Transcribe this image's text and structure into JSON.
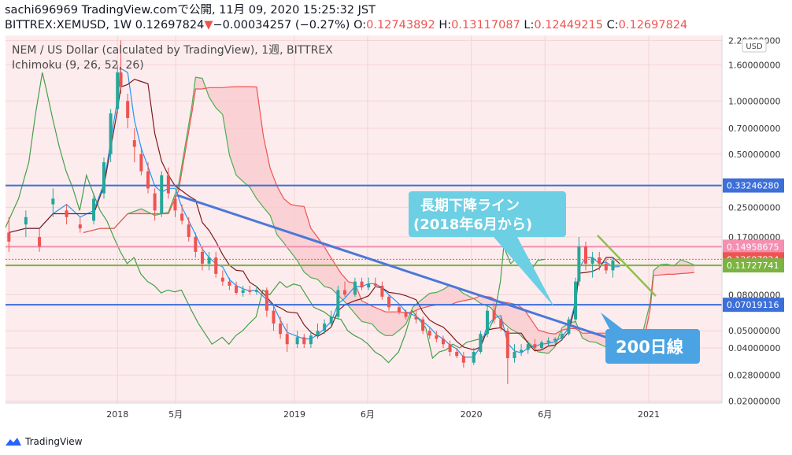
{
  "header": {
    "line1": "sachi696969 TradingView.comで公開, 11月 09, 2020 15:25:32 JST",
    "symbol": "BITTREX:XEMUSD, 1W 0.12697824",
    "change_arrow": "▼",
    "change": "−0.00034257 (−0.27%)",
    "o_label": "O:",
    "o_value": "0.12743892",
    "h_label": "H:",
    "h_value": "0.13117087",
    "l_label": "L:",
    "l_value": "0.12449215",
    "c_label": "C:",
    "c_value": "0.12697824"
  },
  "legend": {
    "title": "NEM / US Dollar (calculated by TradingView), 1週, BITTREX",
    "indicator": "Ichimoku (9, 26, 52, 26)"
  },
  "currency": "USD",
  "annotations": {
    "trendline_label_1": "長期下降ライン",
    "trendline_label_2": "(2018年6月から)",
    "ma_label": "200日線"
  },
  "footer": {
    "brand": "TradingView"
  },
  "colors": {
    "up": "#26a69a",
    "down": "#ef5350",
    "cloud_pink": "#f8c8cc",
    "cloud_green": "#c8e6c9",
    "conversion": "#2196f3",
    "base": "#7b1c1c",
    "lagging": "#43a047",
    "span_a": "#4caf50",
    "span_b": "#ef5350",
    "hline": "#3d6fd8",
    "trendline": "#4a78d8",
    "callout": "#6ccfe3",
    "callout2": "#4ba3e3",
    "pink_band": "#fdecee"
  },
  "chart_data": {
    "type": "candlestick",
    "scale": "log",
    "y_ticks": [
      "2.20000000",
      "1.60000000",
      "1.00000000",
      "0.70000000",
      "0.50000000",
      "0.25000000",
      "0.17000000",
      "0.08000000",
      "0.05000000",
      "0.04000000",
      "0.02800000",
      "0.02000000"
    ],
    "y_tick_values": [
      2.2,
      1.6,
      1.0,
      0.7,
      0.5,
      0.25,
      0.17,
      0.08,
      0.05,
      0.04,
      0.028,
      0.02
    ],
    "x_ticks": [
      "2018",
      "5月",
      "2019",
      "6月",
      "2020",
      "6月",
      "2021"
    ],
    "x_tick_dates": [
      "2018-01-01",
      "2018-05-01",
      "2019-01-01",
      "2019-06-01",
      "2020-01-01",
      "2020-06-01",
      "2021-01-01"
    ],
    "x_range": [
      "2017-05-15",
      "2021-06-01"
    ],
    "y_range": [
      0.0195,
      2.35
    ],
    "price_lines": [
      {
        "value": 0.3324628,
        "label": "0.33246280",
        "color": "#3d6fd8"
      },
      {
        "value": 0.14958675,
        "label": "0.14958675",
        "color": "#f48fb1"
      },
      {
        "value": 0.12697824,
        "label": "0.12697824",
        "color": "#ef5350"
      },
      {
        "value": 0.11727741,
        "label": "0.11727741",
        "color": "#7cb342"
      },
      {
        "value": 0.07019116,
        "label": "0.07019116",
        "color": "#3d6fd8"
      }
    ],
    "candles": [
      [
        "2017-05-22",
        0.18,
        0.22,
        0.14,
        0.16
      ],
      [
        "2017-06-26",
        0.2,
        0.24,
        0.17,
        0.22
      ],
      [
        "2017-07-24",
        0.17,
        0.19,
        0.14,
        0.15
      ],
      [
        "2017-08-21",
        0.26,
        0.32,
        0.22,
        0.28
      ],
      [
        "2017-09-18",
        0.24,
        0.26,
        0.2,
        0.22
      ],
      [
        "2017-10-16",
        0.2,
        0.22,
        0.18,
        0.19
      ],
      [
        "2017-11-13",
        0.21,
        0.3,
        0.2,
        0.28
      ],
      [
        "2017-12-04",
        0.3,
        0.48,
        0.28,
        0.45
      ],
      [
        "2017-12-18",
        0.5,
        0.9,
        0.45,
        0.85
      ],
      [
        "2018-01-01",
        0.9,
        1.6,
        0.85,
        1.45
      ],
      [
        "2018-01-08",
        1.45,
        2.2,
        1.1,
        1.2
      ],
      [
        "2018-01-22",
        1.0,
        1.1,
        0.7,
        0.8
      ],
      [
        "2018-02-05",
        0.6,
        0.7,
        0.45,
        0.55
      ],
      [
        "2018-02-19",
        0.5,
        0.55,
        0.38,
        0.4
      ],
      [
        "2018-03-05",
        0.4,
        0.45,
        0.3,
        0.32
      ],
      [
        "2018-03-19",
        0.3,
        0.32,
        0.21,
        0.24
      ],
      [
        "2018-04-02",
        0.23,
        0.4,
        0.22,
        0.38
      ],
      [
        "2018-04-16",
        0.38,
        0.42,
        0.28,
        0.3
      ],
      [
        "2018-04-30",
        0.28,
        0.3,
        0.22,
        0.24
      ],
      [
        "2018-05-14",
        0.23,
        0.26,
        0.2,
        0.21
      ],
      [
        "2018-05-28",
        0.2,
        0.22,
        0.16,
        0.17
      ],
      [
        "2018-06-11",
        0.17,
        0.18,
        0.13,
        0.14
      ],
      [
        "2018-06-25",
        0.14,
        0.15,
        0.11,
        0.12
      ],
      [
        "2018-07-09",
        0.12,
        0.14,
        0.11,
        0.13
      ],
      [
        "2018-07-23",
        0.13,
        0.14,
        0.1,
        0.105
      ],
      [
        "2018-08-06",
        0.1,
        0.11,
        0.09,
        0.095
      ],
      [
        "2018-08-20",
        0.095,
        0.1,
        0.085,
        0.09
      ],
      [
        "2018-09-03",
        0.09,
        0.095,
        0.08,
        0.082
      ],
      [
        "2018-09-17",
        0.082,
        0.09,
        0.078,
        0.085
      ],
      [
        "2018-10-01",
        0.085,
        0.09,
        0.08,
        0.083
      ],
      [
        "2018-10-15",
        0.083,
        0.09,
        0.08,
        0.085
      ],
      [
        "2018-11-05",
        0.085,
        0.088,
        0.06,
        0.065
      ],
      [
        "2018-11-19",
        0.065,
        0.07,
        0.05,
        0.055
      ],
      [
        "2018-12-03",
        0.055,
        0.06,
        0.045,
        0.048
      ],
      [
        "2018-12-17",
        0.048,
        0.055,
        0.038,
        0.042
      ],
      [
        "2019-01-07",
        0.042,
        0.05,
        0.04,
        0.046
      ],
      [
        "2019-01-21",
        0.046,
        0.048,
        0.04,
        0.042
      ],
      [
        "2019-02-04",
        0.042,
        0.05,
        0.04,
        0.047
      ],
      [
        "2019-02-18",
        0.047,
        0.055,
        0.045,
        0.05
      ],
      [
        "2019-03-04",
        0.05,
        0.058,
        0.048,
        0.055
      ],
      [
        "2019-03-18",
        0.055,
        0.065,
        0.052,
        0.06
      ],
      [
        "2019-04-01",
        0.06,
        0.09,
        0.058,
        0.085
      ],
      [
        "2019-04-15",
        0.085,
        0.095,
        0.078,
        0.08
      ],
      [
        "2019-05-06",
        0.08,
        0.1,
        0.078,
        0.095
      ],
      [
        "2019-05-20",
        0.095,
        0.1,
        0.085,
        0.088
      ],
      [
        "2019-06-03",
        0.088,
        0.1,
        0.085,
        0.092
      ],
      [
        "2019-06-17",
        0.092,
        0.1,
        0.088,
        0.09
      ],
      [
        "2019-07-01",
        0.09,
        0.095,
        0.075,
        0.078
      ],
      [
        "2019-07-15",
        0.078,
        0.08,
        0.065,
        0.068
      ],
      [
        "2019-08-05",
        0.068,
        0.07,
        0.062,
        0.064
      ],
      [
        "2019-08-19",
        0.064,
        0.066,
        0.058,
        0.06
      ],
      [
        "2019-09-09",
        0.06,
        0.065,
        0.055,
        0.058
      ],
      [
        "2019-09-23",
        0.058,
        0.06,
        0.048,
        0.05
      ],
      [
        "2019-10-07",
        0.05,
        0.052,
        0.045,
        0.047
      ],
      [
        "2019-10-21",
        0.047,
        0.05,
        0.043,
        0.045
      ],
      [
        "2019-11-04",
        0.045,
        0.047,
        0.04,
        0.042
      ],
      [
        "2019-11-18",
        0.042,
        0.044,
        0.036,
        0.038
      ],
      [
        "2019-12-02",
        0.038,
        0.04,
        0.035,
        0.036
      ],
      [
        "2019-12-16",
        0.036,
        0.038,
        0.031,
        0.033
      ],
      [
        "2020-01-06",
        0.033,
        0.04,
        0.032,
        0.038
      ],
      [
        "2020-01-20",
        0.038,
        0.05,
        0.037,
        0.048
      ],
      [
        "2020-02-03",
        0.048,
        0.07,
        0.046,
        0.065
      ],
      [
        "2020-02-17",
        0.065,
        0.072,
        0.055,
        0.058
      ],
      [
        "2020-03-02",
        0.058,
        0.06,
        0.05,
        0.052
      ],
      [
        "2020-03-16",
        0.05,
        0.052,
        0.025,
        0.035
      ],
      [
        "2020-03-30",
        0.035,
        0.042,
        0.033,
        0.038
      ],
      [
        "2020-04-13",
        0.038,
        0.042,
        0.036,
        0.039
      ],
      [
        "2020-04-27",
        0.039,
        0.044,
        0.037,
        0.042
      ],
      [
        "2020-05-11",
        0.042,
        0.045,
        0.039,
        0.04
      ],
      [
        "2020-05-25",
        0.04,
        0.044,
        0.039,
        0.043
      ],
      [
        "2020-06-08",
        0.043,
        0.046,
        0.041,
        0.044
      ],
      [
        "2020-06-22",
        0.044,
        0.046,
        0.042,
        0.045
      ],
      [
        "2020-07-06",
        0.045,
        0.05,
        0.044,
        0.048
      ],
      [
        "2020-07-20",
        0.048,
        0.06,
        0.047,
        0.058
      ],
      [
        "2020-08-03",
        0.058,
        0.1,
        0.056,
        0.095
      ],
      [
        "2020-08-10",
        0.095,
        0.17,
        0.09,
        0.15
      ],
      [
        "2020-08-24",
        0.15,
        0.16,
        0.11,
        0.12
      ],
      [
        "2020-09-07",
        0.12,
        0.14,
        0.1,
        0.13
      ],
      [
        "2020-09-21",
        0.13,
        0.14,
        0.11,
        0.12
      ],
      [
        "2020-10-05",
        0.12,
        0.13,
        0.105,
        0.11
      ],
      [
        "2020-10-19",
        0.11,
        0.13,
        0.1,
        0.125
      ],
      [
        "2020-11-02",
        0.12743892,
        0.13117087,
        0.12449215,
        0.12697824
      ]
    ]
  }
}
